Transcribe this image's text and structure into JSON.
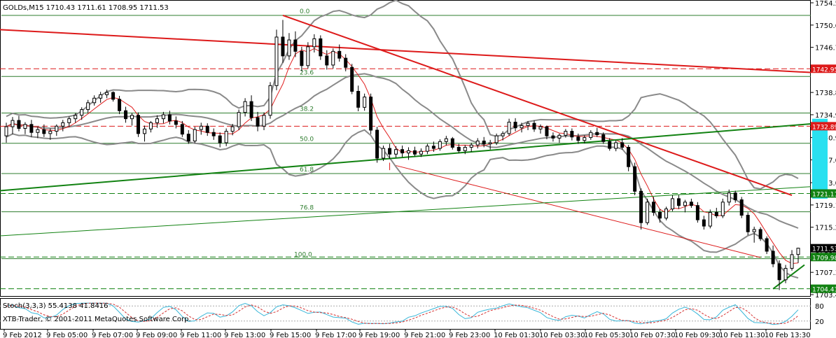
{
  "window": {
    "symbol_header": "GOLDs,M15  1710.43 1711.61 1708.95 1711.53",
    "indicator_header": "Stoch(3,3,3) 55.4138 41.8416",
    "copyright": "XTB-Trader, © 2001-2011 MetaQuotes Software Corp."
  },
  "colors": {
    "background": "#ffffff",
    "bollinger": "#8a8a8a",
    "moving_average": "#e02020",
    "downtrend": "#dd1a1a",
    "uptrend": "#128212",
    "fibonacci": "#2e7d2e",
    "highlight": "#29e0f0",
    "stoch_main": "#38b6d8",
    "stoch_signal": "#d33030"
  },
  "chart_data": {
    "type": "candlestick",
    "symbol": "GOLDs",
    "timeframe": "M15",
    "ohlc_current": {
      "open": 1710.43,
      "high": 1711.61,
      "low": 1708.95,
      "close": 1711.53
    },
    "y_ticks": [
      "1754.50",
      "1750.60",
      "1746.70",
      "1742.80",
      "1738.80",
      "1734.90",
      "1730.90",
      "1727.00",
      "1723.00",
      "1719.10",
      "1715.20",
      "1711.20",
      "1707.30",
      "1703.40"
    ],
    "ylim": [
      1703.4,
      1754.5
    ],
    "x_ticks": [
      "9 Feb 2012",
      "9 Feb 05:00",
      "9 Feb 07:00",
      "9 Feb 09:00",
      "9 Feb 11:00",
      "9 Feb 13:00",
      "9 Feb 15:00",
      "9 Feb 17:00",
      "9 Feb 19:00",
      "9 Feb 21:00",
      "9 Feb 23:00",
      "10 Feb 01:30",
      "10 Feb 03:30",
      "10 Feb 05:30",
      "10 Feb 07:30",
      "10 Feb 09:30",
      "10 Feb 11:30",
      "10 Feb 13:30"
    ],
    "price_tags": [
      {
        "label": "1742.95",
        "value": 1742.95,
        "style": "red"
      },
      {
        "label": "1732.89",
        "value": 1732.89,
        "style": "red"
      },
      {
        "label": "1721.11",
        "value": 1721.11,
        "style": "green"
      },
      {
        "label": "1711.53",
        "value": 1711.53,
        "style": "current"
      },
      {
        "label": "1709.98",
        "value": 1709.98,
        "style": "green"
      },
      {
        "label": "1704.43",
        "value": 1704.43,
        "style": "green"
      }
    ],
    "fibonacci_levels": [
      {
        "label": "0.0",
        "value": 1752.3
      },
      {
        "label": "23.6",
        "value": 1741.6
      },
      {
        "label": "38.2",
        "value": 1735.2
      },
      {
        "label": "50.0",
        "value": 1729.9
      },
      {
        "label": "61.8",
        "value": 1724.6
      },
      {
        "label": "76.8",
        "value": 1717.9
      },
      {
        "label": "100.0",
        "value": 1709.7
      }
    ],
    "candles": [
      [
        1731.2,
        1733.5,
        1730.0,
        1732.8
      ],
      [
        1732.8,
        1734.5,
        1731.5,
        1733.9
      ],
      [
        1733.9,
        1734.7,
        1732.0,
        1732.5
      ],
      [
        1732.5,
        1733.6,
        1731.5,
        1733.2
      ],
      [
        1733.2,
        1734.0,
        1731.0,
        1731.8
      ],
      [
        1731.8,
        1732.8,
        1730.8,
        1732.3
      ],
      [
        1732.3,
        1733.2,
        1731.0,
        1731.6
      ],
      [
        1731.6,
        1732.5,
        1730.5,
        1732.0
      ],
      [
        1732.0,
        1733.2,
        1731.2,
        1732.9
      ],
      [
        1732.9,
        1734.0,
        1732.0,
        1733.5
      ],
      [
        1733.5,
        1734.6,
        1732.8,
        1734.2
      ],
      [
        1734.2,
        1735.2,
        1733.5,
        1734.8
      ],
      [
        1734.8,
        1736.2,
        1734.0,
        1735.8
      ],
      [
        1735.8,
        1737.5,
        1735.2,
        1737.0
      ],
      [
        1737.0,
        1738.3,
        1736.5,
        1737.8
      ],
      [
        1737.8,
        1738.9,
        1737.0,
        1738.4
      ],
      [
        1738.4,
        1739.3,
        1737.8,
        1738.8
      ],
      [
        1738.8,
        1739.0,
        1737.2,
        1737.6
      ],
      [
        1737.6,
        1738.2,
        1735.0,
        1735.6
      ],
      [
        1735.6,
        1736.3,
        1733.5,
        1734.2
      ],
      [
        1734.2,
        1735.2,
        1733.0,
        1734.8
      ],
      [
        1734.8,
        1735.3,
        1731.0,
        1731.6
      ],
      [
        1731.6,
        1733.0,
        1730.2,
        1732.4
      ],
      [
        1732.4,
        1733.8,
        1731.8,
        1733.5
      ],
      [
        1733.5,
        1734.8,
        1732.6,
        1734.2
      ],
      [
        1734.2,
        1735.4,
        1733.4,
        1734.9
      ],
      [
        1734.9,
        1735.6,
        1733.2,
        1733.8
      ],
      [
        1733.8,
        1734.6,
        1732.5,
        1733.2
      ],
      [
        1733.2,
        1733.8,
        1731.0,
        1731.5
      ],
      [
        1731.5,
        1732.2,
        1729.8,
        1730.3
      ],
      [
        1730.3,
        1732.8,
        1729.9,
        1732.3
      ],
      [
        1732.3,
        1733.5,
        1731.4,
        1732.9
      ],
      [
        1732.9,
        1733.4,
        1731.2,
        1731.8
      ],
      [
        1731.8,
        1732.5,
        1730.5,
        1731.2
      ],
      [
        1731.2,
        1731.8,
        1729.2,
        1730.0
      ],
      [
        1730.0,
        1732.5,
        1729.4,
        1732.0
      ],
      [
        1732.0,
        1733.3,
        1731.3,
        1732.8
      ],
      [
        1732.8,
        1735.8,
        1732.2,
        1735.3
      ],
      [
        1735.3,
        1737.8,
        1734.6,
        1737.2
      ],
      [
        1737.2,
        1738.3,
        1733.8,
        1734.4
      ],
      [
        1734.4,
        1735.4,
        1732.0,
        1732.9
      ],
      [
        1732.9,
        1735.3,
        1732.2,
        1734.8
      ],
      [
        1734.8,
        1740.6,
        1734.2,
        1740.0
      ],
      [
        1740.0,
        1749.8,
        1739.2,
        1748.5
      ],
      [
        1748.5,
        1751.5,
        1744.0,
        1745.2
      ],
      [
        1745.2,
        1749.2,
        1744.5,
        1748.0
      ],
      [
        1748.0,
        1749.5,
        1745.0,
        1746.0
      ],
      [
        1746.0,
        1746.8,
        1742.5,
        1743.5
      ],
      [
        1743.5,
        1747.6,
        1743.0,
        1746.8
      ],
      [
        1746.8,
        1749.0,
        1745.8,
        1748.2
      ],
      [
        1748.2,
        1748.8,
        1744.5,
        1745.2
      ],
      [
        1745.2,
        1746.2,
        1742.8,
        1743.6
      ],
      [
        1743.6,
        1746.5,
        1743.0,
        1746.0
      ],
      [
        1746.0,
        1747.2,
        1744.2,
        1744.8
      ],
      [
        1744.8,
        1745.5,
        1742.5,
        1743.2
      ],
      [
        1743.2,
        1743.8,
        1738.5,
        1739.0
      ],
      [
        1739.0,
        1740.0,
        1735.5,
        1736.2
      ],
      [
        1736.2,
        1738.6,
        1735.6,
        1738.0
      ],
      [
        1738.0,
        1738.6,
        1731.5,
        1732.2
      ],
      [
        1732.2,
        1732.8,
        1726.5,
        1727.3
      ],
      [
        1727.3,
        1729.5,
        1726.8,
        1729.0
      ],
      [
        1729.0,
        1729.8,
        1727.2,
        1728.0
      ],
      [
        1728.0,
        1729.4,
        1727.4,
        1728.8
      ],
      [
        1728.8,
        1729.5,
        1727.5,
        1728.2
      ],
      [
        1728.2,
        1729.2,
        1727.0,
        1728.6
      ],
      [
        1728.6,
        1729.3,
        1727.6,
        1728.0
      ],
      [
        1728.0,
        1729.0,
        1727.5,
        1728.5
      ],
      [
        1728.5,
        1729.8,
        1728.0,
        1729.4
      ],
      [
        1729.4,
        1730.2,
        1728.4,
        1729.0
      ],
      [
        1729.0,
        1730.6,
        1728.6,
        1730.2
      ],
      [
        1730.2,
        1731.2,
        1729.5,
        1730.7
      ],
      [
        1730.7,
        1731.0,
        1728.8,
        1729.2
      ],
      [
        1729.2,
        1729.8,
        1728.2,
        1728.6
      ],
      [
        1728.6,
        1729.6,
        1728.0,
        1729.2
      ],
      [
        1729.2,
        1730.0,
        1728.4,
        1729.6
      ],
      [
        1729.6,
        1730.8,
        1729.0,
        1730.3
      ],
      [
        1730.3,
        1731.0,
        1729.2,
        1729.8
      ],
      [
        1729.8,
        1730.5,
        1728.8,
        1730.0
      ],
      [
        1730.0,
        1731.6,
        1729.6,
        1731.2
      ],
      [
        1731.2,
        1732.0,
        1730.4,
        1731.6
      ],
      [
        1731.6,
        1734.2,
        1731.2,
        1733.6
      ],
      [
        1733.6,
        1734.3,
        1732.0,
        1732.6
      ],
      [
        1732.6,
        1733.5,
        1731.8,
        1733.0
      ],
      [
        1733.0,
        1733.8,
        1732.2,
        1733.4
      ],
      [
        1733.4,
        1733.9,
        1731.9,
        1732.4
      ],
      [
        1732.4,
        1733.2,
        1731.6,
        1732.8
      ],
      [
        1732.8,
        1733.0,
        1730.6,
        1731.2
      ],
      [
        1731.2,
        1731.8,
        1730.2,
        1730.8
      ],
      [
        1730.8,
        1731.6,
        1730.0,
        1731.3
      ],
      [
        1731.3,
        1732.4,
        1730.9,
        1732.0
      ],
      [
        1732.0,
        1732.5,
        1730.4,
        1731.0
      ],
      [
        1731.0,
        1731.6,
        1729.8,
        1730.4
      ],
      [
        1730.4,
        1731.3,
        1729.9,
        1730.9
      ],
      [
        1730.9,
        1732.2,
        1730.5,
        1731.8
      ],
      [
        1731.8,
        1732.6,
        1731.0,
        1731.4
      ],
      [
        1731.4,
        1731.8,
        1729.8,
        1730.2
      ],
      [
        1730.2,
        1730.8,
        1728.6,
        1729.0
      ],
      [
        1729.0,
        1730.4,
        1728.5,
        1730.0
      ],
      [
        1730.0,
        1730.8,
        1728.8,
        1729.2
      ],
      [
        1729.2,
        1729.6,
        1725.0,
        1725.8
      ],
      [
        1725.8,
        1726.5,
        1720.8,
        1721.5
      ],
      [
        1721.5,
        1722.0,
        1714.8,
        1716.0
      ],
      [
        1716.0,
        1720.2,
        1715.6,
        1719.6
      ],
      [
        1719.6,
        1720.5,
        1717.2,
        1717.8
      ],
      [
        1717.8,
        1718.4,
        1716.0,
        1716.8
      ],
      [
        1716.8,
        1718.8,
        1716.4,
        1718.4
      ],
      [
        1718.4,
        1720.8,
        1718.0,
        1720.2
      ],
      [
        1720.2,
        1720.8,
        1718.4,
        1719.0
      ],
      [
        1719.0,
        1720.0,
        1717.8,
        1719.6
      ],
      [
        1719.6,
        1720.2,
        1718.6,
        1719.0
      ],
      [
        1719.0,
        1719.6,
        1716.0,
        1716.5
      ],
      [
        1716.5,
        1717.2,
        1714.8,
        1715.4
      ],
      [
        1715.4,
        1718.3,
        1715.0,
        1717.8
      ],
      [
        1717.8,
        1718.6,
        1716.8,
        1717.2
      ],
      [
        1717.2,
        1720.2,
        1716.8,
        1719.6
      ],
      [
        1719.6,
        1721.8,
        1719.0,
        1721.2
      ],
      [
        1721.2,
        1721.6,
        1719.5,
        1720.0
      ],
      [
        1720.0,
        1720.5,
        1716.8,
        1717.3
      ],
      [
        1717.3,
        1717.8,
        1713.8,
        1714.4
      ],
      [
        1714.4,
        1715.3,
        1712.5,
        1714.8
      ],
      [
        1714.8,
        1715.2,
        1712.8,
        1713.2
      ],
      [
        1713.2,
        1713.6,
        1710.5,
        1711.0
      ],
      [
        1711.0,
        1712.0,
        1708.2,
        1708.8
      ],
      [
        1708.8,
        1709.4,
        1704.2,
        1706.0
      ],
      [
        1706.0,
        1708.6,
        1705.4,
        1708.0
      ],
      [
        1708.0,
        1711.2,
        1707.6,
        1710.4
      ],
      [
        1710.43,
        1711.61,
        1708.95,
        1711.53
      ]
    ]
  }
}
